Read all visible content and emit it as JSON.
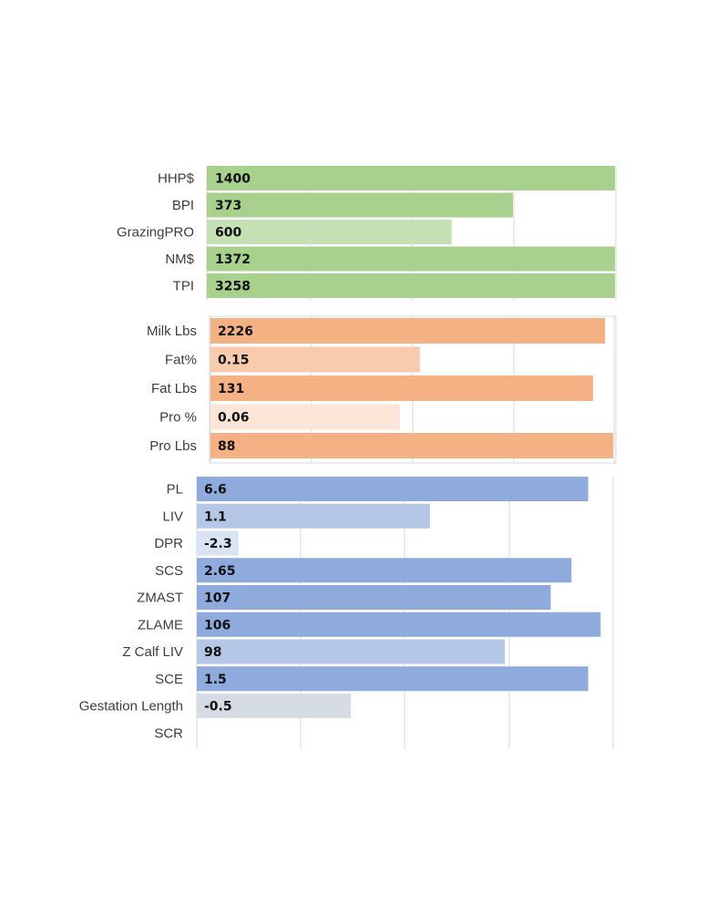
{
  "chart_data": [
    {
      "type": "bar",
      "orientation": "horizontal",
      "colors": [
        "#a9d18e",
        "#a9d18e",
        "#c5e0b4",
        "#a9d18e",
        "#a9d18e"
      ],
      "categories": [
        "HHP$",
        "BPI",
        "GrazingPRO",
        "NM$",
        "TPI"
      ],
      "value_labels": [
        "1400",
        "373",
        "600",
        "1372",
        "3258"
      ],
      "relative_lengths": [
        1.0,
        0.75,
        0.6,
        1.0,
        1.0
      ],
      "grid": true
    },
    {
      "type": "bar",
      "orientation": "horizontal",
      "colors": [
        "#f4b183",
        "#f8cbad",
        "#f4b183",
        "#fbe5d6",
        "#f4b183"
      ],
      "categories": [
        "Milk Lbs",
        "Fat%",
        "Fat Lbs",
        "Pro %",
        "Pro Lbs"
      ],
      "value_labels": [
        "2226",
        "0.15",
        "131",
        "0.06",
        "88"
      ],
      "relative_lengths": [
        0.98,
        0.52,
        0.95,
        0.47,
        1.0
      ],
      "grid": true
    },
    {
      "type": "bar",
      "orientation": "horizontal",
      "colors": [
        "#8faadc",
        "#b4c7e7",
        "#dae3f3",
        "#8faadc",
        "#8faadc",
        "#8faadc",
        "#b4c7e7",
        "#8faadc",
        "#d6dce4",
        "#ffffff"
      ],
      "categories": [
        "PL",
        "LIV",
        "DPR",
        "SCS",
        "ZMAST",
        "ZLAME",
        "Z Calf LIV",
        "SCE",
        "Gestation Length",
        "SCR"
      ],
      "value_labels": [
        "6.6",
        "1.1",
        "-2.3",
        "2.65",
        "107",
        "106",
        "98",
        "1.5",
        "-0.5",
        ""
      ],
      "relative_lengths": [
        0.94,
        0.56,
        0.1,
        0.9,
        0.85,
        0.97,
        0.74,
        0.94,
        0.37,
        0
      ],
      "grid": true
    }
  ]
}
